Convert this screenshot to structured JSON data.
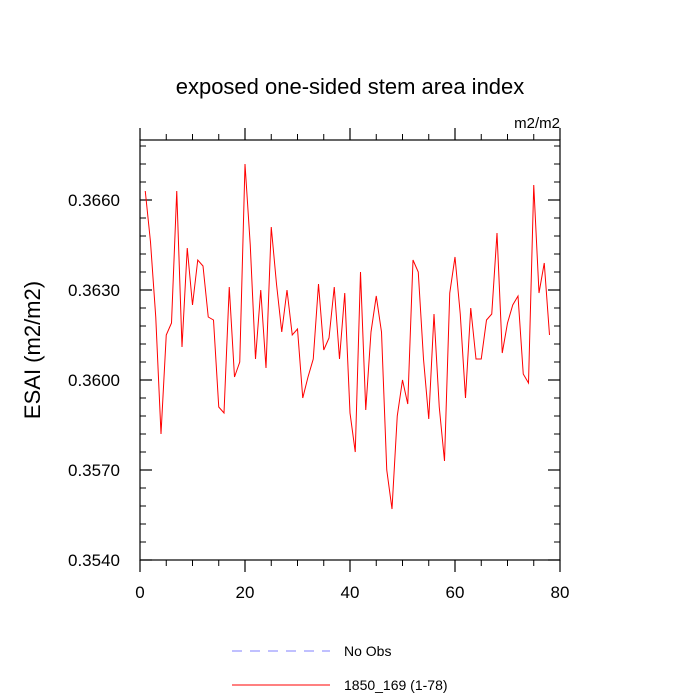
{
  "chart_data": {
    "type": "line",
    "title": "exposed one-sided stem area index",
    "units_label": "m2/m2",
    "ylabel": "ESAI  (m2/m2)",
    "xlabel": "",
    "xlim": [
      0,
      80
    ],
    "ylim": [
      0.354,
      0.368
    ],
    "x_ticks": [
      0,
      20,
      40,
      60,
      80
    ],
    "x_tick_labels": [
      "0",
      "20",
      "40",
      "60",
      "80"
    ],
    "y_ticks": [
      0.354,
      0.357,
      0.36,
      0.363,
      0.366
    ],
    "y_tick_labels": [
      "0.3540",
      "0.3570",
      "0.3600",
      "0.3630",
      "0.3660"
    ],
    "grid": false,
    "legend_position": "bottom-center",
    "series": [
      {
        "name": "1850_169 (1-78)",
        "color": "#ff0000",
        "style": "solid",
        "x": [
          1,
          2,
          3,
          4,
          5,
          6,
          7,
          8,
          9,
          10,
          11,
          12,
          13,
          14,
          15,
          16,
          17,
          18,
          19,
          20,
          21,
          22,
          23,
          24,
          25,
          26,
          27,
          28,
          29,
          30,
          31,
          32,
          33,
          34,
          35,
          36,
          37,
          38,
          39,
          40,
          41,
          42,
          43,
          44,
          45,
          46,
          47,
          48,
          49,
          50,
          51,
          52,
          53,
          54,
          55,
          56,
          57,
          58,
          59,
          60,
          61,
          62,
          63,
          64,
          65,
          66,
          67,
          68,
          69,
          70,
          71,
          72,
          73,
          74,
          75,
          76,
          77,
          78
        ],
        "values": [
          0.3663,
          0.3646,
          0.3621,
          0.3582,
          0.3615,
          0.3619,
          0.3663,
          0.3611,
          0.3644,
          0.3625,
          0.364,
          0.3638,
          0.3621,
          0.362,
          0.3591,
          0.3589,
          0.3631,
          0.3601,
          0.3606,
          0.3672,
          0.3645,
          0.3607,
          0.363,
          0.3604,
          0.3651,
          0.3632,
          0.3616,
          0.363,
          0.3615,
          0.3617,
          0.3594,
          0.3601,
          0.3607,
          0.3632,
          0.361,
          0.3614,
          0.3631,
          0.3607,
          0.3629,
          0.3589,
          0.3576,
          0.3636,
          0.359,
          0.3616,
          0.3628,
          0.3616,
          0.357,
          0.3557,
          0.3588,
          0.36,
          0.3592,
          0.364,
          0.3636,
          0.3607,
          0.3587,
          0.3622,
          0.3591,
          0.3573,
          0.3629,
          0.3641,
          0.3622,
          0.3594,
          0.3624,
          0.3607,
          0.3607,
          0.362,
          0.3622,
          0.3649,
          0.3609,
          0.3619,
          0.3625,
          0.3628,
          0.3602,
          0.3599,
          0.3665,
          0.3629,
          0.3639,
          0.3615
        ]
      },
      {
        "name": "No Obs",
        "color": "#8080ff",
        "style": "dashed",
        "x": [],
        "values": []
      }
    ]
  }
}
